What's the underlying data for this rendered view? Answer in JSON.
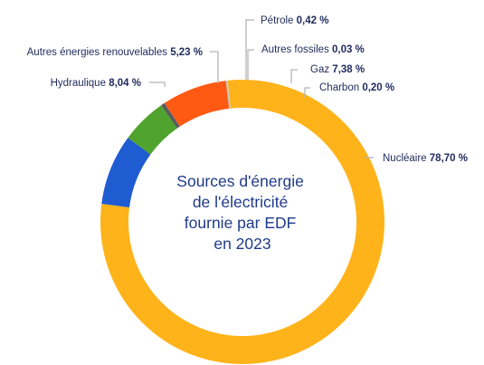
{
  "chart_data": {
    "type": "pie",
    "variant": "donut",
    "title_lines": [
      "Sources d'énergie",
      "de l'électricité",
      "fournie par EDF",
      "en 2023"
    ],
    "slices": [
      {
        "label": "Nucléaire",
        "value_text": "78,70 %",
        "value": 78.7,
        "color": "#ffb31a"
      },
      {
        "label": "Hydraulique",
        "value_text": "8,04 %",
        "value": 8.04,
        "color": "#1f5bd1"
      },
      {
        "label": "Autres énergies renouvelables",
        "value_text": "5,23 %",
        "value": 5.23,
        "color": "#4fa32e"
      },
      {
        "label": "Pétrole",
        "value_text": "0,42 %",
        "value": 0.42,
        "color": "#5a5a5a"
      },
      {
        "label": "Autres fossiles",
        "value_text": "0,03 %",
        "value": 0.03,
        "color": "#3a3a3a"
      },
      {
        "label": "Gaz",
        "value_text": "7,38 %",
        "value": 7.38,
        "color": "#ff5a14"
      },
      {
        "label": "Charbon",
        "value_text": "0,20 %",
        "value": 0.2,
        "color": "#c8c8c8"
      }
    ]
  }
}
